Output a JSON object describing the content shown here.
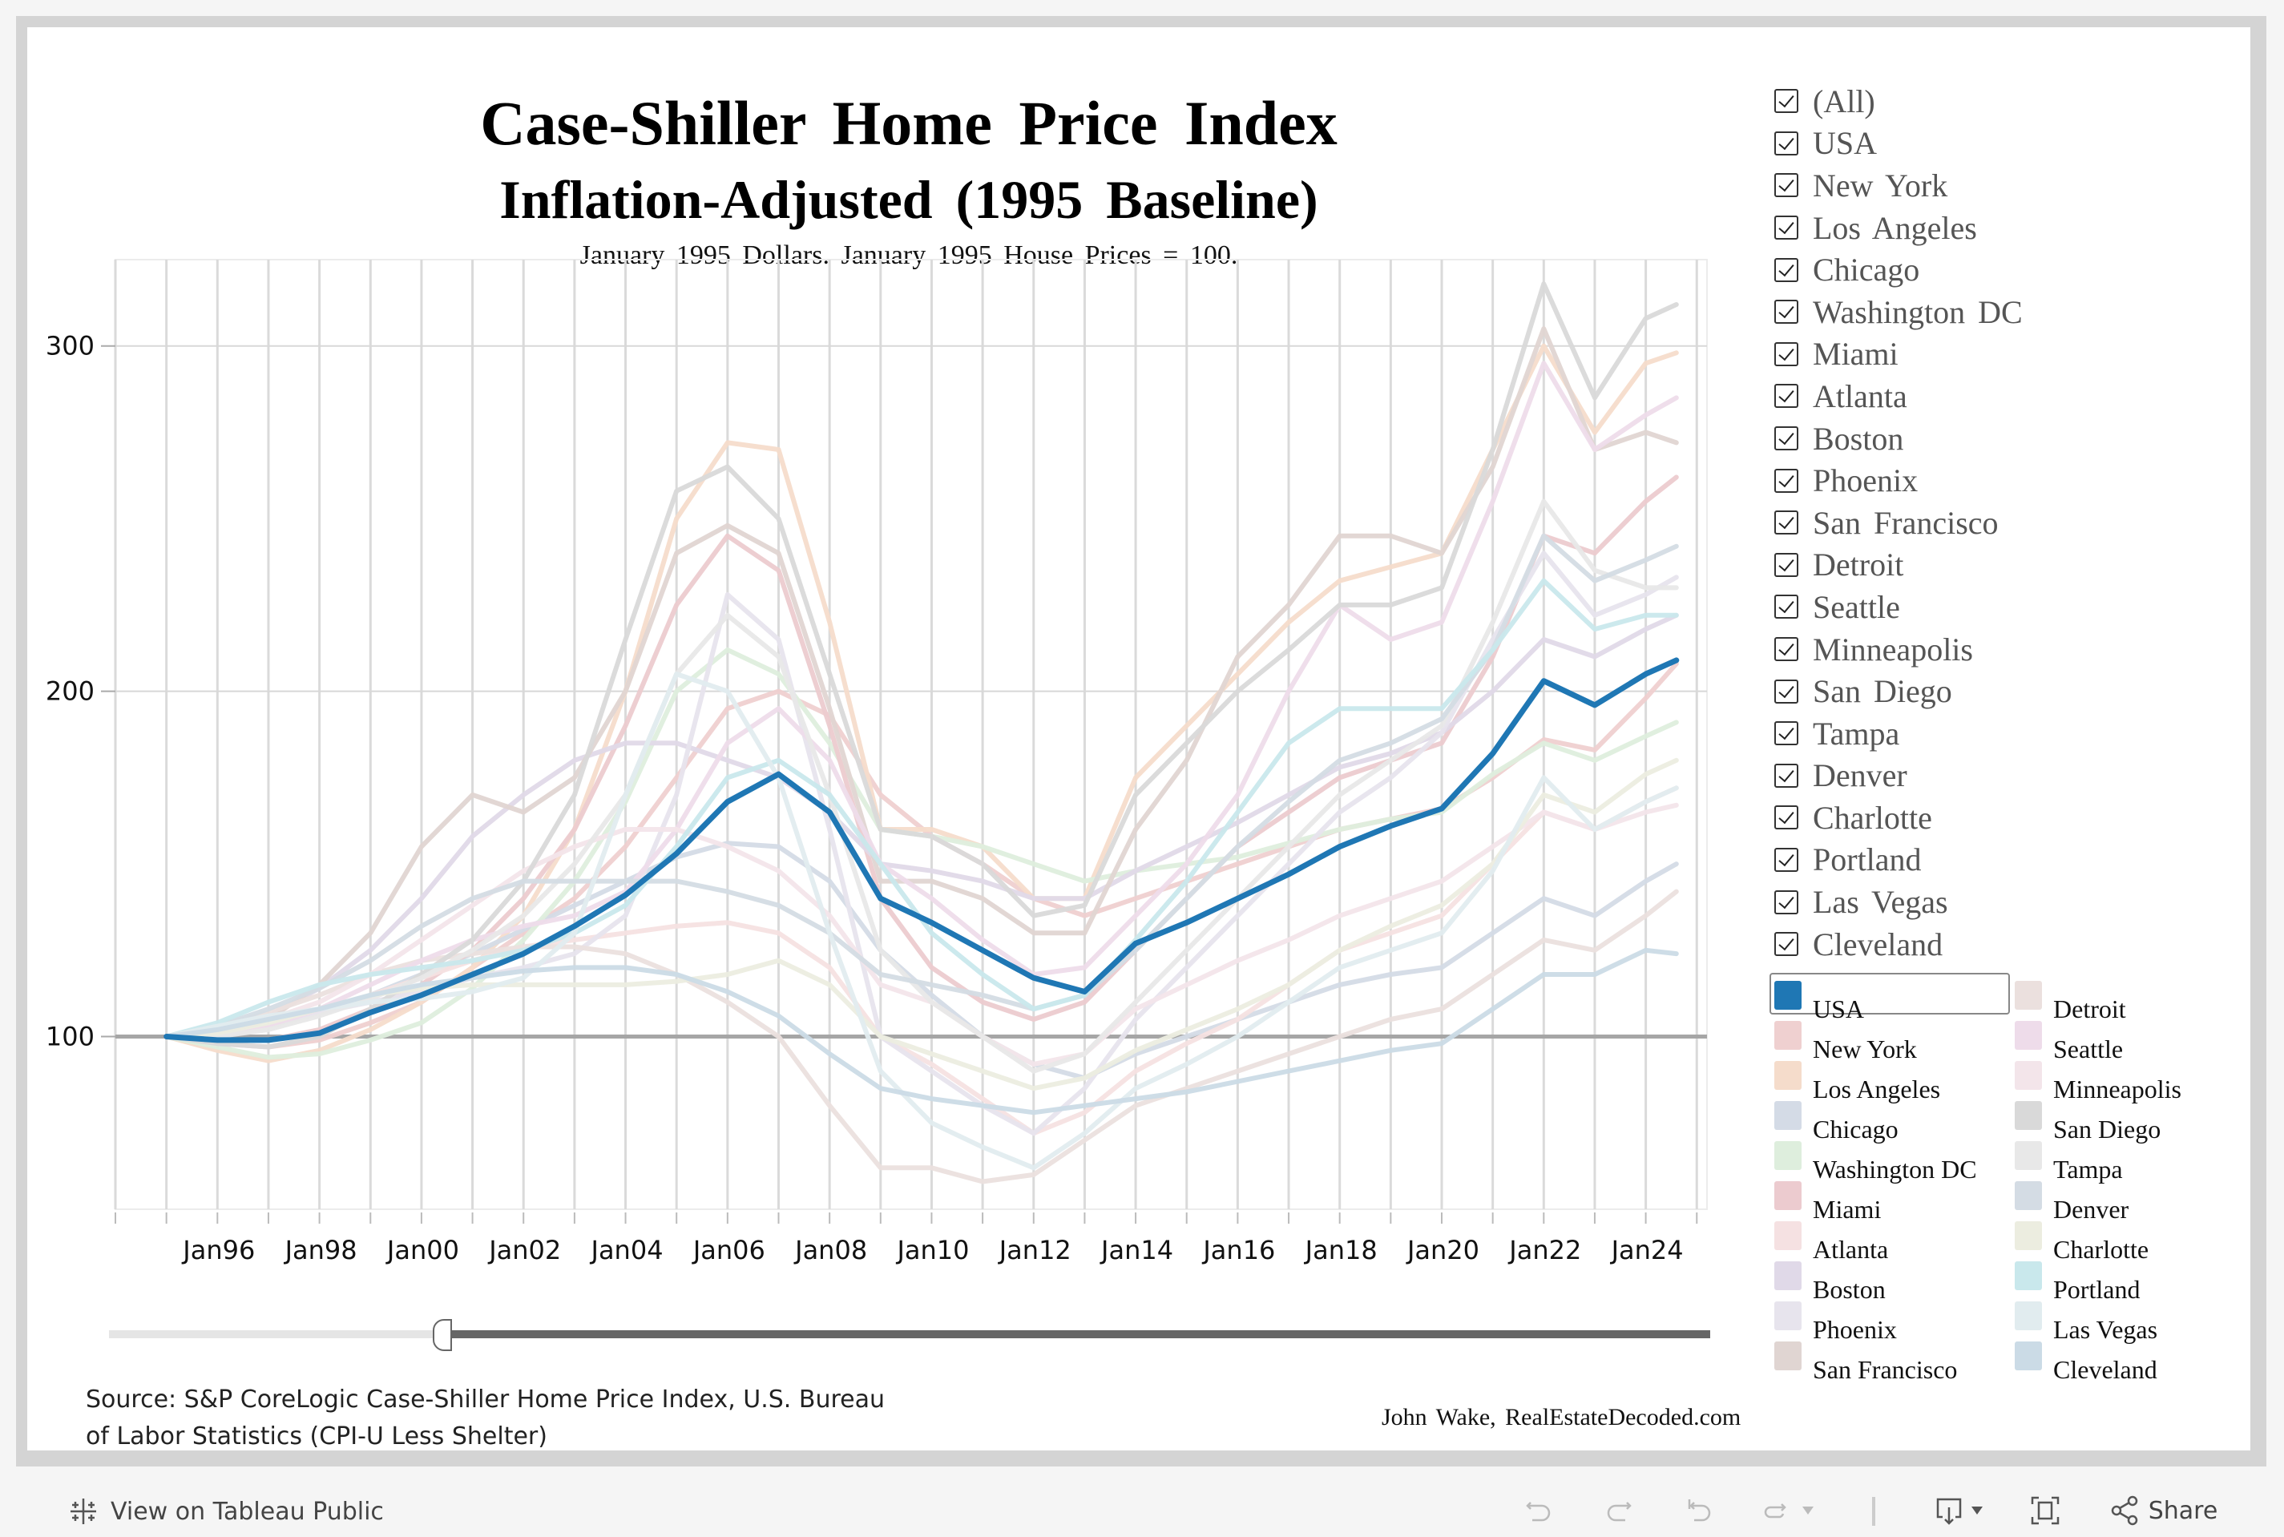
{
  "title": "Case-Shiller Home Price Index",
  "subtitle_line2": "Inflation-Adjusted (1995 Baseline)",
  "subtitle_line3": "January 1995 Dollars. January 1995 House Prices = 100.",
  "source": "Source: S&P CoreLogic Case-Shiller Home Price Index, U.S. Bureau of Labor Statistics (CPI-U Less Shelter)",
  "credit": "John Wake, RealEstateDecoded.com",
  "filter": {
    "items": [
      "(All)",
      "USA",
      "New York",
      "Los Angeles",
      "Chicago",
      "Washington DC",
      "Miami",
      "Atlanta",
      "Boston",
      "Phoenix",
      "San Francisco",
      "Detroit",
      "Seattle",
      "Minneapolis",
      "San Diego",
      "Tampa",
      "Denver",
      "Charlotte",
      "Portland",
      "Las Vegas",
      "Cleveland"
    ],
    "checked": true
  },
  "legend": {
    "selected": "USA",
    "items": [
      {
        "label": "USA",
        "color": "#1f77b4"
      },
      {
        "label": "New York",
        "color": "#efd0d0"
      },
      {
        "label": "Los Angeles",
        "color": "#f5dccb"
      },
      {
        "label": "Chicago",
        "color": "#d4dbe6"
      },
      {
        "label": "Washington DC",
        "color": "#deeedd"
      },
      {
        "label": "Miami",
        "color": "#eccbcf"
      },
      {
        "label": "Atlanta",
        "color": "#f5e1e2"
      },
      {
        "label": "Boston",
        "color": "#e0d9e8"
      },
      {
        "label": "Phoenix",
        "color": "#e7e4ed"
      },
      {
        "label": "San Francisco",
        "color": "#e0d5d2"
      },
      {
        "label": "Detroit",
        "color": "#ebe0de"
      },
      {
        "label": "Seattle",
        "color": "#eedcea"
      },
      {
        "label": "Minneapolis",
        "color": "#f3e5ea"
      },
      {
        "label": "San Diego",
        "color": "#d9d9d9"
      },
      {
        "label": "Tampa",
        "color": "#e8e8e8"
      },
      {
        "label": "Denver",
        "color": "#d4dce4"
      },
      {
        "label": "Charlotte",
        "color": "#ecede0"
      },
      {
        "label": "Portland",
        "color": "#c9e8ec"
      },
      {
        "label": "Las Vegas",
        "color": "#e1ecef"
      },
      {
        "label": "Cleveland",
        "color": "#cbdbe6"
      }
    ]
  },
  "slider": {
    "range_fraction": [
      0.21,
      1.0
    ]
  },
  "toolbar": {
    "view_label": "View on Tableau Public",
    "share_label": "Share"
  },
  "chart_data": {
    "type": "line",
    "title": "Case-Shiller Home Price Index",
    "subtitle": "Inflation-Adjusted (1995 Baseline)",
    "xlabel": "",
    "ylabel": "",
    "x": [
      1995,
      1996,
      1997,
      1998,
      1999,
      2000,
      2001,
      2002,
      2003,
      2004,
      2005,
      2006,
      2007,
      2008,
      2009,
      2010,
      2011,
      2012,
      2013,
      2014,
      2015,
      2016,
      2017,
      2018,
      2019,
      2020,
      2021,
      2022,
      2023,
      2024,
      2024.6
    ],
    "x_ticks": [
      "Jan96",
      "Jan98",
      "Jan00",
      "Jan02",
      "Jan04",
      "Jan06",
      "Jan08",
      "Jan10",
      "Jan12",
      "Jan14",
      "Jan16",
      "Jan18",
      "Jan20",
      "Jan22",
      "Jan24"
    ],
    "x_tick_values": [
      1996,
      1998,
      2000,
      2002,
      2004,
      2006,
      2008,
      2010,
      2012,
      2014,
      2016,
      2018,
      2020,
      2022,
      2024
    ],
    "xlim": [
      1994,
      2025.2
    ],
    "y_ticks": [
      100,
      200,
      300
    ],
    "ylim": [
      50,
      325
    ],
    "baseline": 100,
    "grid": true,
    "legend_position": "right",
    "series": [
      {
        "name": "USA",
        "values": [
          100,
          99,
          99,
          101,
          107,
          112,
          118,
          124,
          132,
          141,
          153,
          168,
          176,
          165,
          140,
          133,
          125,
          117,
          113,
          127,
          133,
          140,
          147,
          155,
          161,
          166,
          182,
          203,
          196,
          205,
          209
        ]
      },
      {
        "name": "New York",
        "values": [
          100,
          98,
          97,
          99,
          104,
          110,
          120,
          130,
          140,
          155,
          175,
          195,
          200,
          193,
          170,
          158,
          150,
          140,
          135,
          140,
          145,
          150,
          155,
          160,
          163,
          166,
          175,
          186,
          183,
          198,
          208
        ]
      },
      {
        "name": "Los Angeles",
        "values": [
          100,
          96,
          93,
          96,
          102,
          110,
          120,
          135,
          160,
          200,
          250,
          272,
          270,
          220,
          160,
          160,
          155,
          140,
          140,
          175,
          190,
          205,
          220,
          232,
          236,
          240,
          270,
          300,
          275,
          295,
          298
        ]
      },
      {
        "name": "Chicago",
        "values": [
          100,
          101,
          103,
          107,
          112,
          118,
          124,
          131,
          138,
          145,
          152,
          156,
          155,
          145,
          125,
          112,
          100,
          92,
          88,
          95,
          100,
          105,
          110,
          115,
          118,
          120,
          130,
          140,
          135,
          145,
          150
        ]
      },
      {
        "name": "Washington DC",
        "values": [
          100,
          97,
          94,
          95,
          99,
          104,
          114,
          128,
          145,
          168,
          200,
          212,
          205,
          185,
          160,
          158,
          155,
          150,
          145,
          148,
          150,
          152,
          156,
          160,
          163,
          165,
          176,
          185,
          180,
          187,
          191
        ]
      },
      {
        "name": "Miami",
        "values": [
          100,
          99,
          99,
          102,
          108,
          115,
          125,
          140,
          160,
          190,
          225,
          245,
          235,
          190,
          140,
          120,
          110,
          105,
          110,
          125,
          140,
          155,
          165,
          175,
          180,
          185,
          210,
          245,
          240,
          255,
          262
        ]
      },
      {
        "name": "Atlanta",
        "values": [
          100,
          101,
          103,
          107,
          112,
          117,
          122,
          126,
          128,
          130,
          132,
          133,
          130,
          120,
          100,
          92,
          82,
          72,
          78,
          90,
          98,
          105,
          115,
          125,
          130,
          135,
          150,
          165,
          160,
          168,
          172
        ]
      },
      {
        "name": "Boston",
        "values": [
          100,
          102,
          106,
          114,
          125,
          140,
          158,
          170,
          180,
          185,
          185,
          180,
          175,
          165,
          150,
          148,
          145,
          140,
          140,
          148,
          155,
          162,
          170,
          178,
          182,
          188,
          200,
          215,
          210,
          218,
          222
        ]
      },
      {
        "name": "Phoenix",
        "values": [
          100,
          101,
          103,
          107,
          110,
          113,
          117,
          120,
          124,
          135,
          170,
          228,
          215,
          160,
          100,
          90,
          80,
          72,
          85,
          105,
          120,
          135,
          150,
          165,
          175,
          188,
          215,
          240,
          222,
          228,
          233
        ]
      },
      {
        "name": "San Francisco",
        "values": [
          100,
          100,
          105,
          115,
          130,
          155,
          170,
          165,
          175,
          200,
          240,
          248,
          240,
          195,
          145,
          145,
          140,
          130,
          130,
          160,
          180,
          210,
          225,
          245,
          245,
          240,
          265,
          305,
          270,
          275,
          272
        ]
      },
      {
        "name": "Detroit",
        "values": [
          100,
          103,
          107,
          112,
          118,
          122,
          124,
          126,
          126,
          124,
          118,
          110,
          100,
          80,
          62,
          62,
          58,
          60,
          70,
          80,
          85,
          90,
          95,
          100,
          105,
          108,
          118,
          128,
          125,
          135,
          142
        ]
      },
      {
        "name": "Seattle",
        "values": [
          100,
          100,
          103,
          108,
          115,
          122,
          128,
          132,
          135,
          142,
          160,
          185,
          195,
          180,
          150,
          140,
          128,
          118,
          120,
          135,
          150,
          170,
          200,
          225,
          215,
          220,
          255,
          295,
          270,
          280,
          285
        ]
      },
      {
        "name": "Minneapolis",
        "values": [
          100,
          102,
          105,
          110,
          118,
          128,
          138,
          148,
          155,
          160,
          160,
          155,
          148,
          135,
          115,
          110,
          100,
          92,
          95,
          108,
          115,
          122,
          128,
          135,
          140,
          145,
          155,
          165,
          160,
          165,
          167
        ]
      },
      {
        "name": "San Diego",
        "values": [
          100,
          98,
          97,
          100,
          108,
          118,
          128,
          145,
          170,
          215,
          258,
          265,
          250,
          205,
          160,
          158,
          150,
          135,
          138,
          170,
          185,
          200,
          212,
          225,
          225,
          230,
          270,
          318,
          285,
          308,
          312
        ]
      },
      {
        "name": "Tampa",
        "values": [
          100,
          100,
          102,
          106,
          111,
          117,
          125,
          135,
          150,
          170,
          205,
          222,
          210,
          170,
          125,
          110,
          100,
          90,
          95,
          110,
          125,
          140,
          155,
          170,
          180,
          190,
          220,
          255,
          235,
          230,
          230
        ]
      },
      {
        "name": "Denver",
        "values": [
          100,
          103,
          108,
          114,
          122,
          132,
          140,
          145,
          145,
          145,
          145,
          142,
          138,
          130,
          118,
          115,
          112,
          108,
          112,
          125,
          140,
          155,
          168,
          180,
          185,
          192,
          212,
          245,
          232,
          238,
          242
        ]
      },
      {
        "name": "Charlotte",
        "values": [
          100,
          101,
          104,
          108,
          112,
          114,
          115,
          115,
          115,
          115,
          116,
          118,
          122,
          115,
          100,
          95,
          90,
          85,
          88,
          96,
          102,
          108,
          115,
          125,
          132,
          138,
          150,
          170,
          165,
          176,
          180
        ]
      },
      {
        "name": "Portland",
        "values": [
          100,
          104,
          110,
          115,
          118,
          120,
          122,
          125,
          130,
          138,
          155,
          175,
          180,
          170,
          150,
          130,
          118,
          108,
          112,
          128,
          145,
          165,
          185,
          195,
          195,
          195,
          212,
          232,
          218,
          222,
          222
        ]
      },
      {
        "name": "Las Vegas",
        "values": [
          100,
          103,
          106,
          108,
          110,
          111,
          113,
          117,
          130,
          170,
          205,
          200,
          175,
          130,
          90,
          75,
          68,
          62,
          72,
          85,
          92,
          100,
          110,
          120,
          125,
          130,
          148,
          175,
          160,
          168,
          172
        ]
      },
      {
        "name": "Cleveland",
        "values": [
          100,
          102,
          105,
          108,
          112,
          115,
          117,
          119,
          120,
          120,
          118,
          113,
          106,
          95,
          85,
          82,
          80,
          78,
          80,
          82,
          84,
          87,
          90,
          93,
          96,
          98,
          108,
          118,
          118,
          125,
          124
        ]
      }
    ]
  }
}
